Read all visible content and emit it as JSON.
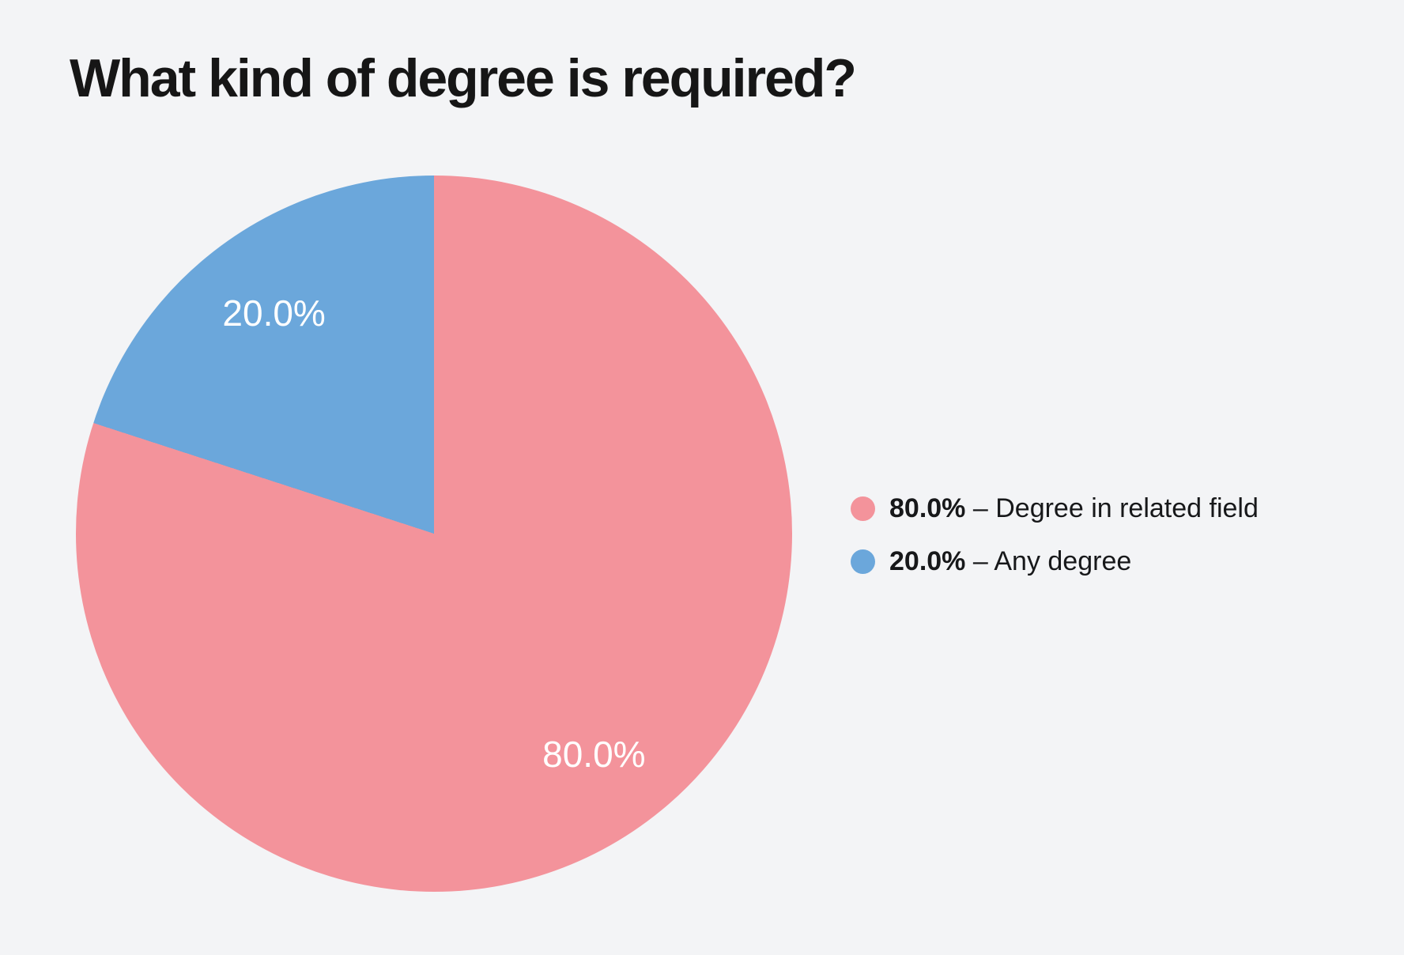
{
  "page": {
    "background_color": "#f3f4f6"
  },
  "header": {
    "title": "What kind of degree is required?"
  },
  "chart_data": {
    "type": "pie",
    "title": "What kind of degree is required?",
    "start_angle_deg": 0,
    "direction": "clockwise",
    "legend_position": "right",
    "legend_separator": "–",
    "slice_label_color": "#ffffff",
    "slice_label_radius_ratio": 0.76,
    "slices": [
      {
        "label": "Degree in related field",
        "value": 80.0,
        "percent": "80.0%",
        "color": "#f3939b"
      },
      {
        "label": "Any degree",
        "value": 20.0,
        "percent": "20.0%",
        "color": "#6ba7db"
      }
    ]
  }
}
